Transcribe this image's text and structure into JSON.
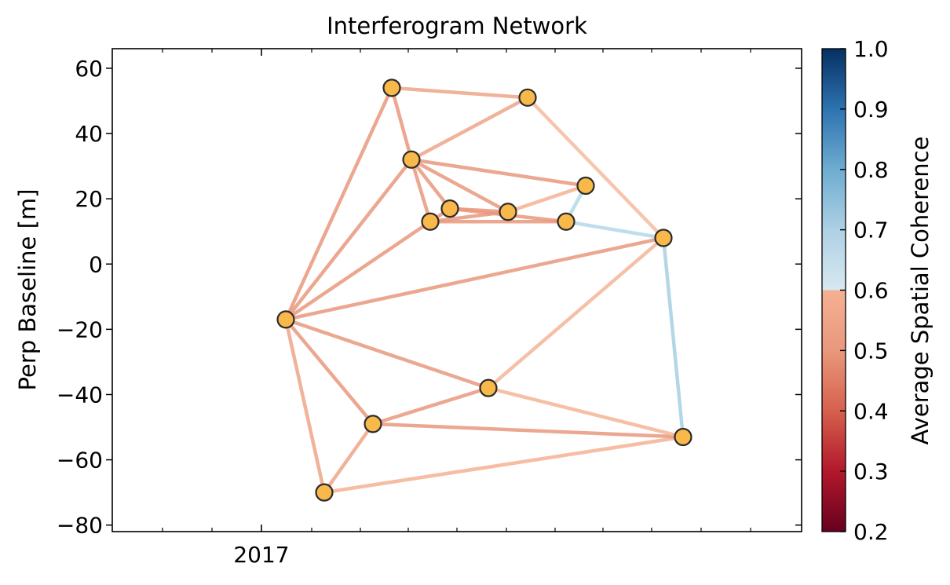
{
  "chart_data": {
    "type": "network",
    "title": "Interferogram Network",
    "xlabel": "",
    "ylabel": "Perp Baseline [m]",
    "xtick_labels": [
      "2017"
    ],
    "ylim": [
      -82,
      66
    ],
    "yticks": [
      60,
      40,
      20,
      0,
      -20,
      -40,
      -60,
      -80
    ],
    "colorbar": {
      "label": "Average Spatial Coherence",
      "range": [
        0.2,
        1.0
      ],
      "ticks": [
        1.0,
        0.9,
        0.8,
        0.7,
        0.6,
        0.5,
        0.4,
        0.3,
        0.2
      ],
      "colormap": "RdBu",
      "vmin_display": 0.2,
      "vmax_display": 1.0
    },
    "acquisitions": [
      {
        "id": "A",
        "y": -17
      },
      {
        "id": "B",
        "y": -70
      },
      {
        "id": "C",
        "y": -49
      },
      {
        "id": "D",
        "y": 54
      },
      {
        "id": "E",
        "y": 32
      },
      {
        "id": "F",
        "y": 13
      },
      {
        "id": "G",
        "y": 17
      },
      {
        "id": "H",
        "y": -38
      },
      {
        "id": "I",
        "y": 16
      },
      {
        "id": "J",
        "y": 51
      },
      {
        "id": "K",
        "y": 13
      },
      {
        "id": "L",
        "y": 24
      },
      {
        "id": "M",
        "y": 8
      },
      {
        "id": "N",
        "y": -53
      }
    ],
    "interferograms": [
      {
        "from": "A",
        "to": "D",
        "coherence": 0.5
      },
      {
        "from": "A",
        "to": "E",
        "coherence": 0.5
      },
      {
        "from": "A",
        "to": "F",
        "coherence": 0.5
      },
      {
        "from": "A",
        "to": "M",
        "coherence": 0.5
      },
      {
        "from": "A",
        "to": "H",
        "coherence": 0.5
      },
      {
        "from": "A",
        "to": "C",
        "coherence": 0.5
      },
      {
        "from": "A",
        "to": "B",
        "coherence": 0.55
      },
      {
        "from": "B",
        "to": "C",
        "coherence": 0.55
      },
      {
        "from": "B",
        "to": "N",
        "coherence": 0.6
      },
      {
        "from": "C",
        "to": "H",
        "coherence": 0.5
      },
      {
        "from": "C",
        "to": "N",
        "coherence": 0.5
      },
      {
        "from": "D",
        "to": "J",
        "coherence": 0.55
      },
      {
        "from": "D",
        "to": "E",
        "coherence": 0.5
      },
      {
        "from": "E",
        "to": "J",
        "coherence": 0.55
      },
      {
        "from": "E",
        "to": "F",
        "coherence": 0.5
      },
      {
        "from": "E",
        "to": "G",
        "coherence": 0.5
      },
      {
        "from": "E",
        "to": "I",
        "coherence": 0.5
      },
      {
        "from": "E",
        "to": "L",
        "coherence": 0.5
      },
      {
        "from": "F",
        "to": "G",
        "coherence": 0.5
      },
      {
        "from": "F",
        "to": "I",
        "coherence": 0.5
      },
      {
        "from": "F",
        "to": "K",
        "coherence": 0.5
      },
      {
        "from": "G",
        "to": "I",
        "coherence": 0.5
      },
      {
        "from": "G",
        "to": "K",
        "coherence": 0.5
      },
      {
        "from": "I",
        "to": "L",
        "coherence": 0.6
      },
      {
        "from": "J",
        "to": "M",
        "coherence": 0.65
      },
      {
        "from": "K",
        "to": "L",
        "coherence": 0.75
      },
      {
        "from": "K",
        "to": "M",
        "coherence": 0.75
      },
      {
        "from": "H",
        "to": "M",
        "coherence": 0.62
      },
      {
        "from": "H",
        "to": "N",
        "coherence": 0.62
      },
      {
        "from": "M",
        "to": "N",
        "coherence": 0.77
      }
    ]
  }
}
